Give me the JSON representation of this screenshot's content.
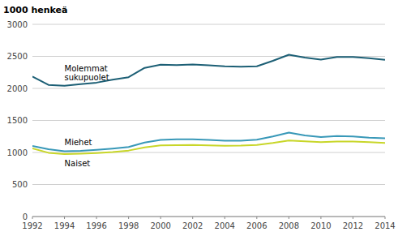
{
  "chart_data": {
    "type": "line",
    "y_label": "1000 henkeä",
    "x": [
      1992,
      1993,
      1994,
      1995,
      1996,
      1997,
      1998,
      1999,
      2000,
      2001,
      2002,
      2003,
      2004,
      2005,
      2006,
      2007,
      2008,
      2009,
      2010,
      2011,
      2012,
      2013,
      2014
    ],
    "series": [
      {
        "name": "Molemmat\nsukupuolet",
        "color": "#1c5f75",
        "values": [
          2185,
          2055,
          2040,
          2065,
          2090,
          2135,
          2175,
          2320,
          2370,
          2365,
          2372,
          2360,
          2345,
          2340,
          2345,
          2430,
          2525,
          2480,
          2450,
          2490,
          2490,
          2470,
          2445
        ]
      },
      {
        "name": "Miehet",
        "color": "#3898b8",
        "values": [
          1100,
          1050,
          1020,
          1025,
          1040,
          1060,
          1085,
          1155,
          1195,
          1205,
          1205,
          1195,
          1185,
          1185,
          1200,
          1250,
          1310,
          1265,
          1240,
          1255,
          1250,
          1230,
          1220
        ]
      },
      {
        "name": "Naiset",
        "color": "#c8d629",
        "values": [
          1065,
          995,
          975,
          980,
          990,
          1005,
          1030,
          1080,
          1110,
          1115,
          1118,
          1110,
          1105,
          1108,
          1118,
          1150,
          1188,
          1175,
          1160,
          1170,
          1170,
          1162,
          1150
        ]
      }
    ],
    "xlim": [
      1992,
      2014
    ],
    "xticks": [
      1992,
      1994,
      1996,
      1998,
      2000,
      2002,
      2004,
      2006,
      2008,
      2010,
      2012,
      2014
    ],
    "ylim": [
      0,
      3000
    ],
    "yticks": [
      0,
      500,
      1000,
      1500,
      2000,
      2500,
      3000
    ],
    "grid": true
  }
}
